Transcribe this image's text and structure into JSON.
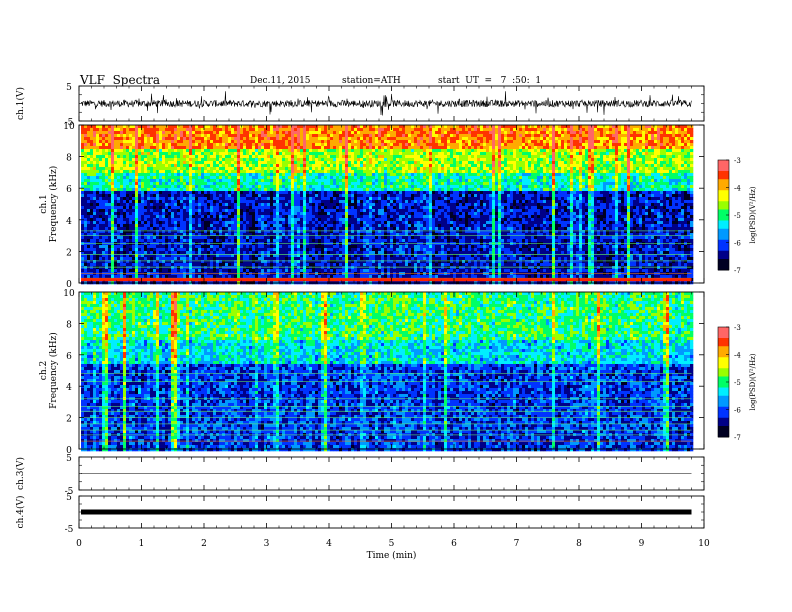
{
  "header": {
    "title": "VLF  Spectra",
    "date": "Dec.11, 2015",
    "station": "station=ATH",
    "start": "start  UT  =   7  :50:  1"
  },
  "colors": {
    "spectrum": [
      "#000033",
      "#0000aa",
      "#0055ff",
      "#00ccff",
      "#00ff66",
      "#ccff00",
      "#ffcc00",
      "#ff4400",
      "#ff8888",
      "#ffffff"
    ],
    "trace": "#000000",
    "frame": "#000000"
  },
  "chart_data": [
    {
      "type": "line",
      "panel": "ch1-waveform",
      "ylabel": "ch.1(V)",
      "ylim": [
        -5,
        5
      ],
      "yticks": [
        "5",
        "-5"
      ],
      "description_series": "noisy waveform around 0 V with amplitude ~1 V and spikes up to ~3 V",
      "series": [
        {
          "values_mean": 0,
          "values_amplitude": 1
        }
      ]
    },
    {
      "type": "heatmap",
      "panel": "ch1-spectrogram",
      "ylabel": "ch.1\nFrequency  (kHz)",
      "ylim": [
        0,
        10
      ],
      "yticks": [
        "0",
        "2",
        "4",
        "6",
        "8",
        "10"
      ],
      "colorbar": {
        "label": "log(PSD)(V²/Hz)",
        "range": [
          -7,
          -3
        ],
        "ticks": [
          "-3",
          "-4",
          "-5",
          "-6",
          "-7"
        ]
      },
      "bands_khz": [
        [
          0,
          6,
          -6.3
        ],
        [
          6,
          7,
          -5.2
        ],
        [
          7,
          8.5,
          -4.6
        ],
        [
          8.5,
          10,
          -3.8
        ]
      ]
    },
    {
      "type": "heatmap",
      "panel": "ch2-spectrogram",
      "ylabel": "ch.2\nFrequency  (kHz)",
      "ylim": [
        0,
        10
      ],
      "yticks": [
        "0",
        "2",
        "4",
        "6",
        "8",
        "10"
      ],
      "colorbar": {
        "label": "log(PSD)(V²/Hz)",
        "range": [
          -7,
          -3
        ],
        "ticks": [
          "-3",
          "-4",
          "-5",
          "-6",
          "-7"
        ]
      },
      "bands_khz": [
        [
          0,
          5.5,
          -6.1
        ],
        [
          5.5,
          7,
          -5.4
        ],
        [
          7,
          10,
          -5.0
        ]
      ]
    },
    {
      "type": "line",
      "panel": "ch3-waveform",
      "ylabel": "ch.3(V)",
      "ylim": [
        -5,
        5
      ],
      "yticks": [
        "5",
        "-5"
      ],
      "series": [
        {
          "values_mean": 0,
          "values_amplitude": 0
        }
      ]
    },
    {
      "type": "line",
      "panel": "ch4-waveform",
      "ylabel": "ch.4(V)",
      "ylim": [
        -5,
        5
      ],
      "yticks": [
        "5",
        "-5"
      ],
      "series": [
        {
          "values_mean": 0,
          "values_amplitude": 0.2
        }
      ]
    }
  ],
  "xaxis": {
    "label": "Time  (min)",
    "range": [
      0,
      10
    ],
    "data_end": 9.8,
    "ticks": [
      "0",
      "1",
      "2",
      "3",
      "4",
      "5",
      "6",
      "7",
      "8",
      "9",
      "10"
    ]
  }
}
